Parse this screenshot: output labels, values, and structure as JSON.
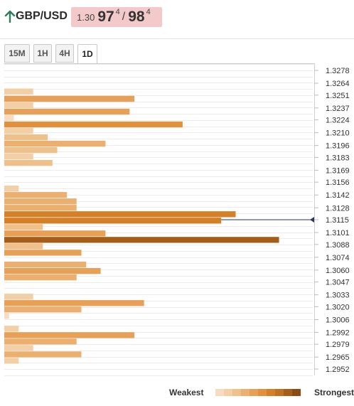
{
  "header": {
    "pair": "GBP/USD",
    "trend_icon": "up-arrow-icon",
    "trend_color": "#2e7d5b",
    "quote_bg": "#f3c9c9",
    "bid_prefix": "1.30",
    "bid_big": "97",
    "bid_frac": "4",
    "slash": "/",
    "ask_big": "98",
    "ask_frac": "4"
  },
  "tabs": [
    {
      "label": "15M",
      "active": false
    },
    {
      "label": "1H",
      "active": false
    },
    {
      "label": "4H",
      "active": false
    },
    {
      "label": "1D",
      "active": true
    }
  ],
  "legend": {
    "weakest": "Weakest",
    "strongest": "Strongest",
    "scale_colors": [
      "#f7dcc0",
      "#f3cfa5",
      "#efc08a",
      "#ebb06f",
      "#e7a055",
      "#e3903c",
      "#d57f26",
      "#c0701f",
      "#a65d18",
      "#8a4a12"
    ]
  },
  "chart_data": {
    "type": "bar",
    "orientation": "horizontal",
    "current_price": 1.3115,
    "price_labels": [
      "1.3278",
      "1.3264",
      "1.3251",
      "1.3237",
      "1.3224",
      "1.3210",
      "1.3196",
      "1.3183",
      "1.3169",
      "1.3156",
      "1.3142",
      "1.3128",
      "1.3115",
      "1.3101",
      "1.3088",
      "1.3074",
      "1.3060",
      "1.3047",
      "1.3033",
      "1.3020",
      "1.3006",
      "1.2992",
      "1.2979",
      "1.2965",
      "1.2952"
    ],
    "bars": [
      {
        "price": 1.3255,
        "value": 6,
        "color": "#f3cfa5"
      },
      {
        "price": 1.3247,
        "value": 27,
        "color": "#e7a055"
      },
      {
        "price": 1.324,
        "value": 6,
        "color": "#f3cfa5"
      },
      {
        "price": 1.3233,
        "value": 26,
        "color": "#e7a055"
      },
      {
        "price": 1.3226,
        "value": 2,
        "color": "#f7dcc0"
      },
      {
        "price": 1.3219,
        "value": 37,
        "color": "#e3903c"
      },
      {
        "price": 1.3212,
        "value": 6,
        "color": "#f3cfa5"
      },
      {
        "price": 1.3205,
        "value": 9,
        "color": "#efc08a"
      },
      {
        "price": 1.3198,
        "value": 21,
        "color": "#ebb06f"
      },
      {
        "price": 1.3191,
        "value": 11,
        "color": "#efc08a"
      },
      {
        "price": 1.3184,
        "value": 6,
        "color": "#f3cfa5"
      },
      {
        "price": 1.3177,
        "value": 10,
        "color": "#efc08a"
      },
      {
        "price": 1.3149,
        "value": 3,
        "color": "#f3cfa5"
      },
      {
        "price": 1.3142,
        "value": 13,
        "color": "#ebb06f"
      },
      {
        "price": 1.3135,
        "value": 15,
        "color": "#ebb06f"
      },
      {
        "price": 1.3128,
        "value": 15,
        "color": "#ebb06f"
      },
      {
        "price": 1.3121,
        "value": 48,
        "color": "#d57f26"
      },
      {
        "price": 1.3114,
        "value": 45,
        "color": "#d57f26"
      },
      {
        "price": 1.3107,
        "value": 8,
        "color": "#efc08a"
      },
      {
        "price": 1.31,
        "value": 21,
        "color": "#e7a055"
      },
      {
        "price": 1.3093,
        "value": 57,
        "color": "#a65d18"
      },
      {
        "price": 1.3086,
        "value": 8,
        "color": "#efc08a"
      },
      {
        "price": 1.3079,
        "value": 16,
        "color": "#e7a055"
      },
      {
        "price": 1.3066,
        "value": 17,
        "color": "#ebb06f"
      },
      {
        "price": 1.3059,
        "value": 20,
        "color": "#e7a055"
      },
      {
        "price": 1.3052,
        "value": 15,
        "color": "#ebb06f"
      },
      {
        "price": 1.3031,
        "value": 6,
        "color": "#f3cfa5"
      },
      {
        "price": 1.3024,
        "value": 29,
        "color": "#e7a055"
      },
      {
        "price": 1.3017,
        "value": 16,
        "color": "#ebb06f"
      },
      {
        "price": 1.301,
        "value": 1,
        "color": "#f7dcc0"
      },
      {
        "price": 1.2996,
        "value": 3,
        "color": "#f3cfa5"
      },
      {
        "price": 1.2989,
        "value": 27,
        "color": "#e7a055"
      },
      {
        "price": 1.2982,
        "value": 15,
        "color": "#ebb06f"
      },
      {
        "price": 1.2975,
        "value": 6,
        "color": "#f3cfa5"
      },
      {
        "price": 1.2968,
        "value": 16,
        "color": "#ebb06f"
      },
      {
        "price": 1.2961,
        "value": 3,
        "color": "#f3cfa5"
      }
    ],
    "xlim": [
      0,
      64
    ],
    "ylim": [
      1.2945,
      1.3285
    ],
    "grid": true
  }
}
